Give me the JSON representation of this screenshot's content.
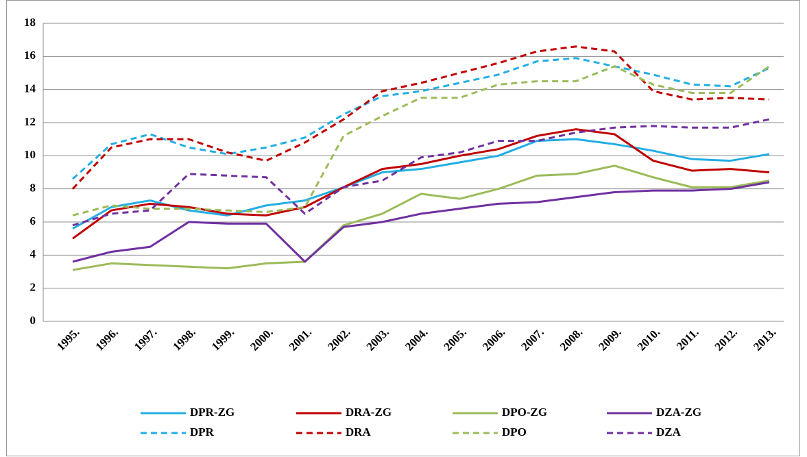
{
  "chart_data": {
    "type": "line",
    "categories": [
      "1995.",
      "1996.",
      "1997.",
      "1998.",
      "1999.",
      "2000.",
      "2001.",
      "2002.",
      "2003.",
      "2004.",
      "2005.",
      "2006.",
      "2007.",
      "2008.",
      "2009.",
      "2010.",
      "2011.",
      "2012.",
      "2013."
    ],
    "series": [
      {
        "name": "DPR-ZG",
        "color": "#22aee4",
        "dashed": false,
        "values": [
          5.6,
          6.9,
          7.3,
          6.7,
          6.4,
          7.0,
          7.3,
          8.1,
          9.0,
          9.2,
          9.6,
          10.0,
          10.9,
          11.0,
          10.7,
          10.3,
          9.8,
          9.7,
          10.1
        ]
      },
      {
        "name": "DRA-ZG",
        "color": "#c00000",
        "dashed": false,
        "values": [
          5.0,
          6.7,
          7.1,
          6.9,
          6.5,
          6.4,
          6.9,
          8.1,
          9.2,
          9.5,
          10.0,
          10.4,
          11.2,
          11.6,
          11.3,
          9.7,
          9.1,
          9.2,
          9.0
        ]
      },
      {
        "name": "DPO-ZG",
        "color": "#9bbb59",
        "dashed": false,
        "values": [
          3.1,
          3.5,
          3.4,
          3.3,
          3.2,
          3.5,
          3.6,
          5.8,
          6.5,
          7.7,
          7.4,
          8.0,
          8.8,
          8.9,
          9.4,
          8.7,
          8.1,
          8.1,
          8.5
        ]
      },
      {
        "name": "DZA-ZG",
        "color": "#7030a0",
        "dashed": false,
        "values": [
          3.6,
          4.2,
          4.5,
          6.0,
          5.9,
          5.9,
          3.6,
          5.7,
          6.0,
          6.5,
          6.8,
          7.1,
          7.2,
          7.5,
          7.8,
          7.9,
          7.9,
          8.0,
          8.4
        ]
      },
      {
        "name": "DPR",
        "color": "#22aee4",
        "dashed": true,
        "values": [
          8.6,
          10.7,
          11.3,
          10.5,
          10.1,
          10.5,
          11.1,
          12.5,
          13.6,
          13.9,
          14.4,
          14.9,
          15.7,
          15.9,
          15.4,
          14.9,
          14.3,
          14.2,
          15.3
        ]
      },
      {
        "name": "DRA",
        "color": "#c00000",
        "dashed": true,
        "values": [
          8.0,
          10.5,
          11.0,
          11.0,
          10.2,
          9.7,
          10.8,
          12.2,
          13.9,
          14.4,
          15.0,
          15.6,
          16.3,
          16.6,
          16.3,
          13.9,
          13.4,
          13.5,
          13.4
        ]
      },
      {
        "name": "DPO",
        "color": "#9bbb59",
        "dashed": true,
        "values": [
          6.4,
          7.0,
          6.8,
          6.8,
          6.7,
          6.6,
          6.9,
          11.2,
          12.4,
          13.5,
          13.5,
          14.3,
          14.5,
          14.5,
          15.4,
          14.3,
          13.8,
          13.8,
          15.4
        ]
      },
      {
        "name": "DZA",
        "color": "#7030a0",
        "dashed": true,
        "values": [
          5.8,
          6.5,
          6.7,
          8.9,
          8.8,
          8.7,
          6.5,
          8.1,
          8.5,
          9.9,
          10.2,
          10.9,
          10.9,
          11.4,
          11.7,
          11.8,
          11.7,
          11.7,
          12.2
        ]
      }
    ],
    "ylim": [
      0,
      18
    ],
    "yticks": [
      0,
      2,
      4,
      6,
      8,
      10,
      12,
      14,
      16,
      18
    ],
    "grid": true
  }
}
